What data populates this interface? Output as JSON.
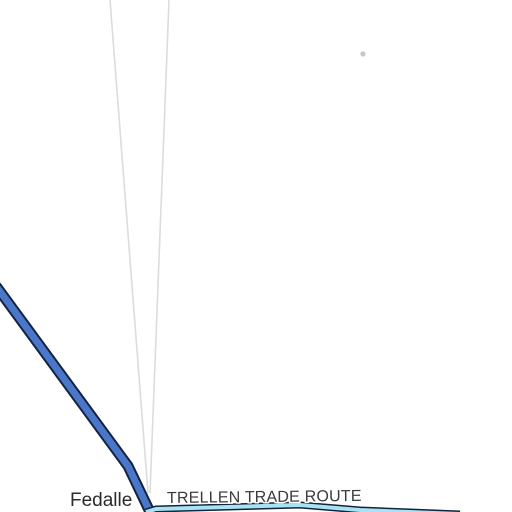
{
  "map": {
    "place_label": "Fedalle",
    "route_label": "TRELLEN TRADE ROUTE",
    "colors": {
      "background": "#ffffff",
      "major_road_fill": "#4a77c9",
      "major_road_casing": "#14233f",
      "trade_route_fill": "#a8e3f3",
      "trade_route_casing": "#13233b",
      "minor_line": "#dcdcdc",
      "point_marker": "#c8c8c8",
      "label_text": "#2b2b2b"
    }
  }
}
